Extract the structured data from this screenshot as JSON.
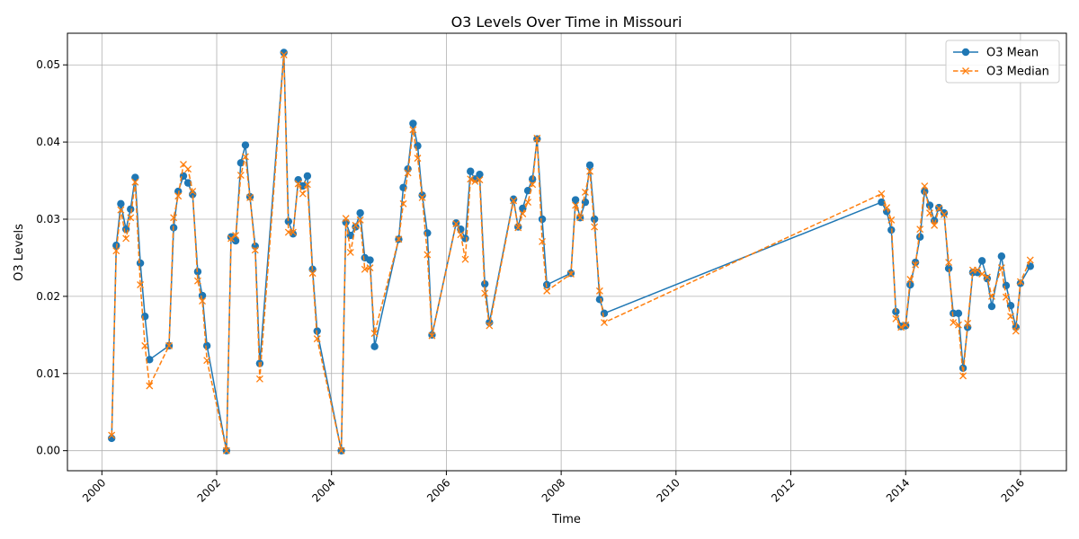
{
  "chart_data": {
    "type": "line",
    "title": "O3 Levels Over Time in Missouri",
    "xlabel": "Time",
    "ylabel": "O3 Levels",
    "xlim": [
      1999.4,
      2016.8
    ],
    "ylim": [
      -0.0026,
      0.0541
    ],
    "x_ticks": [
      2000,
      2002,
      2004,
      2006,
      2008,
      2010,
      2012,
      2014,
      2016
    ],
    "y_ticks": [
      0.0,
      0.01,
      0.02,
      0.03,
      0.04,
      0.05
    ],
    "y_tick_labels": [
      "0.00",
      "0.01",
      "0.02",
      "0.03",
      "0.04",
      "0.05"
    ],
    "grid": true,
    "legend_position": "top-right",
    "x": [
      2000.17,
      2000.25,
      2000.33,
      2000.42,
      2000.5,
      2000.58,
      2000.67,
      2000.75,
      2000.83,
      2001.17,
      2001.25,
      2001.33,
      2001.42,
      2001.5,
      2001.58,
      2001.67,
      2001.75,
      2001.83,
      2002.17,
      2002.25,
      2002.33,
      2002.42,
      2002.5,
      2002.58,
      2002.67,
      2002.75,
      2003.17,
      2003.25,
      2003.33,
      2003.42,
      2003.5,
      2003.58,
      2003.67,
      2003.75,
      2004.17,
      2004.25,
      2004.33,
      2004.42,
      2004.5,
      2004.58,
      2004.67,
      2004.75,
      2005.17,
      2005.25,
      2005.33,
      2005.42,
      2005.5,
      2005.58,
      2005.67,
      2005.75,
      2006.17,
      2006.25,
      2006.33,
      2006.42,
      2006.5,
      2006.58,
      2006.67,
      2006.75,
      2007.17,
      2007.25,
      2007.33,
      2007.42,
      2007.5,
      2007.58,
      2007.67,
      2007.75,
      2008.17,
      2008.25,
      2008.33,
      2008.42,
      2008.5,
      2008.58,
      2008.67,
      2008.75,
      2013.58,
      2013.67,
      2013.75,
      2013.83,
      2013.92,
      2014.0,
      2014.08,
      2014.17,
      2014.25,
      2014.33,
      2014.42,
      2014.5,
      2014.58,
      2014.67,
      2014.75,
      2014.83,
      2014.92,
      2015.0,
      2015.08,
      2015.17,
      2015.25,
      2015.33,
      2015.42,
      2015.5,
      2015.67,
      2015.75,
      2015.83,
      2015.92,
      2016.0,
      2016.17
    ],
    "series": [
      {
        "name": "O3 Mean",
        "color": "#1f77b4",
        "style": "solid",
        "marker": "circle",
        "values": [
          0.0016,
          0.0266,
          0.032,
          0.0287,
          0.0313,
          0.0354,
          0.0243,
          0.0174,
          0.0118,
          0.0136,
          0.0289,
          0.0336,
          0.0356,
          0.0347,
          0.0332,
          0.0232,
          0.0201,
          0.0136,
          0.0,
          0.0277,
          0.0272,
          0.0373,
          0.0396,
          0.0329,
          0.0265,
          0.0113,
          0.0516,
          0.0297,
          0.0281,
          0.0351,
          0.0343,
          0.0356,
          0.0235,
          0.0155,
          0.0,
          0.0296,
          0.0279,
          0.029,
          0.0308,
          0.025,
          0.0247,
          0.0135,
          0.0274,
          0.0341,
          0.0365,
          0.0424,
          0.0395,
          0.0331,
          0.0282,
          0.015,
          0.0295,
          0.0287,
          0.0275,
          0.0362,
          0.0352,
          0.0358,
          0.0216,
          0.0166,
          0.0326,
          0.029,
          0.0314,
          0.0337,
          0.0352,
          0.0404,
          0.03,
          0.0215,
          0.023,
          0.0325,
          0.0302,
          0.0322,
          0.037,
          0.03,
          0.0196,
          0.0178,
          0.0322,
          0.031,
          0.0286,
          0.018,
          0.0161,
          0.0162,
          0.0215,
          0.0244,
          0.0277,
          0.0336,
          0.0318,
          0.0298,
          0.0315,
          0.0308,
          0.0236,
          0.0178,
          0.0178,
          0.0107,
          0.016,
          0.0231,
          0.0231,
          0.0246,
          0.0223,
          0.0187,
          0.0252,
          0.0214,
          0.0188,
          0.016,
          0.0217,
          0.0239
        ]
      },
      {
        "name": "O3 Median",
        "color": "#ff7f0e",
        "style": "dashed",
        "marker": "x",
        "values": [
          0.002,
          0.0259,
          0.0312,
          0.0275,
          0.0302,
          0.0348,
          0.0215,
          0.0136,
          0.0084,
          0.0136,
          0.0302,
          0.033,
          0.0371,
          0.0365,
          0.0336,
          0.022,
          0.0194,
          0.0117,
          0.0,
          0.0275,
          0.0279,
          0.0357,
          0.0381,
          0.0328,
          0.026,
          0.0093,
          0.0513,
          0.0283,
          0.0283,
          0.0346,
          0.0333,
          0.0345,
          0.023,
          0.0145,
          0.0,
          0.0301,
          0.0257,
          0.0292,
          0.0299,
          0.0235,
          0.0237,
          0.0152,
          0.0274,
          0.032,
          0.036,
          0.0416,
          0.0379,
          0.0328,
          0.0254,
          0.0149,
          0.0294,
          0.028,
          0.0248,
          0.0352,
          0.0349,
          0.0351,
          0.0204,
          0.0162,
          0.0324,
          0.0289,
          0.0307,
          0.0322,
          0.0345,
          0.0405,
          0.0271,
          0.0207,
          0.0229,
          0.0318,
          0.0302,
          0.0335,
          0.0362,
          0.029,
          0.0207,
          0.0166,
          0.0333,
          0.0315,
          0.0299,
          0.0171,
          0.016,
          0.0163,
          0.0222,
          0.0241,
          0.0287,
          0.0343,
          0.0308,
          0.0292,
          0.0314,
          0.0306,
          0.0244,
          0.0166,
          0.0163,
          0.0097,
          0.0165,
          0.0234,
          0.0234,
          0.0229,
          0.0225,
          0.02,
          0.0237,
          0.0199,
          0.0174,
          0.0155,
          0.0219,
          0.0247
        ]
      }
    ]
  }
}
